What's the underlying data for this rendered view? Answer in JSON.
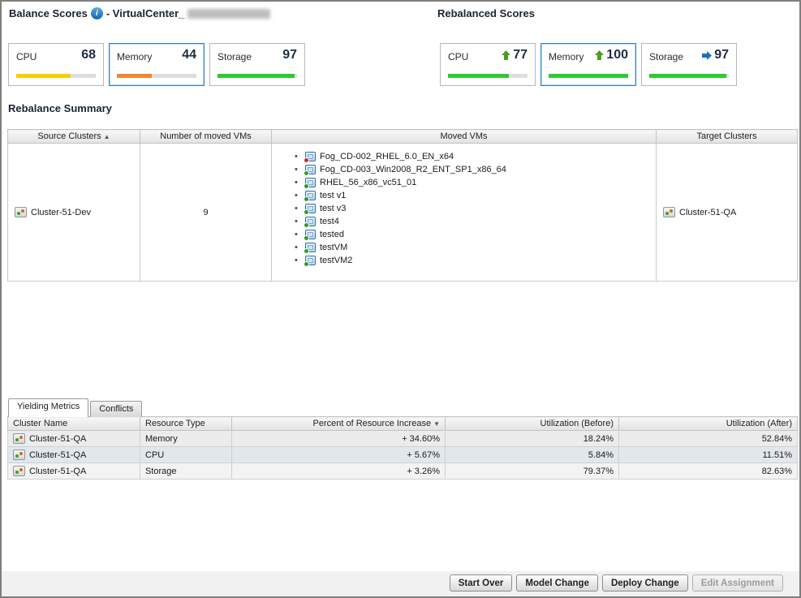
{
  "header": {
    "balance_title": "Balance Scores",
    "vcenter_label": "- VirtualCenter_",
    "rebalanced_title": "Rebalanced Scores"
  },
  "balance_scores": {
    "cards": [
      {
        "label": "CPU",
        "value": "68",
        "pct": 68,
        "color": "#f7ce00",
        "selected": false
      },
      {
        "label": "Memory",
        "value": "44",
        "pct": 44,
        "color": "#f0882d",
        "selected": true
      },
      {
        "label": "Storage",
        "value": "97",
        "pct": 97,
        "color": "#2fca2f",
        "selected": false
      }
    ]
  },
  "rebalanced_scores": {
    "cards": [
      {
        "label": "CPU",
        "value": "77",
        "pct": 77,
        "trend": "up",
        "color": "#2fca2f",
        "selected": false
      },
      {
        "label": "Memory",
        "value": "100",
        "pct": 100,
        "trend": "up",
        "color": "#2fca2f",
        "selected": true
      },
      {
        "label": "Storage",
        "value": "97",
        "pct": 97,
        "trend": "right",
        "color": "#2fca2f",
        "selected": false
      }
    ]
  },
  "summary": {
    "title": "Rebalance Summary",
    "columns": [
      "Source Clusters",
      "Number of moved VMs",
      "Moved VMs",
      "Target Clusters"
    ],
    "sort_indicator": "▲",
    "row": {
      "source_cluster": "Cluster-51-Dev",
      "moved_count": "9",
      "target_cluster": "Cluster-51-QA",
      "moved_vms": [
        {
          "name": "Fog_CD-002_RHEL_6.0_EN_x64",
          "status": "stopped"
        },
        {
          "name": "Fog_CD-003_Win2008_R2_ENT_SP1_x86_64",
          "status": "running"
        },
        {
          "name": "RHEL_56_x86_vc51_01",
          "status": "running"
        },
        {
          "name": "test v1",
          "status": "running"
        },
        {
          "name": "test v3",
          "status": "running"
        },
        {
          "name": "test4",
          "status": "running"
        },
        {
          "name": "tested",
          "status": "running"
        },
        {
          "name": "testVM",
          "status": "running"
        },
        {
          "name": "testVM2",
          "status": "running"
        }
      ]
    }
  },
  "tabs": [
    {
      "label": "Yielding Metrics",
      "active": true
    },
    {
      "label": "Conflicts",
      "active": false
    }
  ],
  "metrics": {
    "columns": [
      "Cluster Name",
      "Resource Type",
      "Percent of Resource Increase",
      "Utilization (Before)",
      "Utilization (After)"
    ],
    "sort_indicator": "▼",
    "rows": [
      {
        "cluster": "Cluster-51-QA",
        "resource": "Memory",
        "increase": "+ 34.60%",
        "before": "18.24%",
        "after": "52.84%"
      },
      {
        "cluster": "Cluster-51-QA",
        "resource": "CPU",
        "increase": "+ 5.67%",
        "before": "5.84%",
        "after": "11.51%"
      },
      {
        "cluster": "Cluster-51-QA",
        "resource": "Storage",
        "increase": "+ 3.26%",
        "before": "79.37%",
        "after": "82.63%"
      }
    ]
  },
  "buttons": [
    {
      "label": "Start Over",
      "enabled": true
    },
    {
      "label": "Model Change",
      "enabled": true
    },
    {
      "label": "Deploy Change",
      "enabled": true
    },
    {
      "label": "Edit Assignment",
      "enabled": false
    }
  ],
  "colors": {
    "accent_blue": "#2e7fc1",
    "bar_yellow": "#f7ce00",
    "bar_orange": "#f0882d",
    "bar_green": "#2fca2f",
    "arrow_up_green": "#4f9d20",
    "arrow_right_blue": "#1e6fc0"
  }
}
